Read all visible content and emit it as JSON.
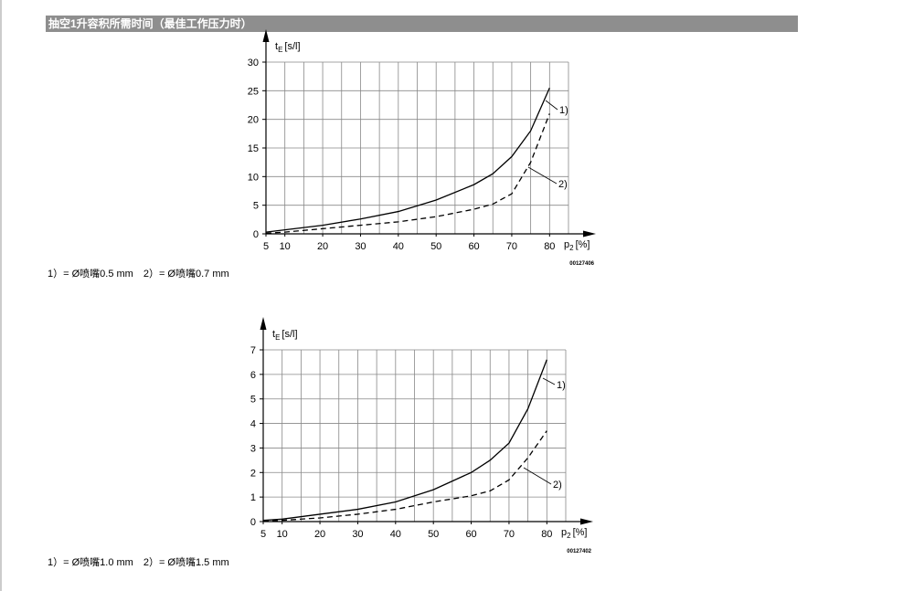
{
  "header": {
    "title": "抽空1升容积所需时间（最佳工作压力时）"
  },
  "chart_data": [
    {
      "type": "line",
      "ylabel": {
        "base": "t",
        "sub": "E",
        "unit": "[s/l]"
      },
      "xlabel": {
        "base": "p",
        "sub": "2",
        "unit": "[%]"
      },
      "figure_code": "00127406",
      "x": [
        5,
        10,
        20,
        30,
        40,
        50,
        60,
        65,
        70,
        75,
        80
      ],
      "series": [
        {
          "name": "1)",
          "color": "#000000",
          "style": "solid",
          "values": [
            0.3,
            0.7,
            1.5,
            2.6,
            3.9,
            5.9,
            8.6,
            10.5,
            13.5,
            18,
            25.5
          ]
        },
        {
          "name": "2)",
          "color": "#000000",
          "style": "dashed",
          "values": [
            0.1,
            0.3,
            0.9,
            1.5,
            2.1,
            3,
            4.3,
            5.2,
            7,
            12.5,
            21
          ]
        }
      ],
      "xlim": [
        5,
        85
      ],
      "xticks": [
        5,
        10,
        20,
        30,
        40,
        50,
        60,
        70,
        80
      ],
      "ylim": [
        0,
        30
      ],
      "yticks": [
        0,
        5,
        10,
        15,
        20,
        25,
        30
      ],
      "grid": true,
      "grid_step": 5,
      "caption": "1）= Ø喷嘴0.5 mm　2）= Ø喷嘴0.7 mm"
    },
    {
      "type": "line",
      "ylabel": {
        "base": "t",
        "sub": "E",
        "unit": "[s/l]"
      },
      "xlabel": {
        "base": "p",
        "sub": "2",
        "unit": "[%]"
      },
      "figure_code": "00127402",
      "x": [
        5,
        10,
        20,
        30,
        40,
        50,
        60,
        65,
        70,
        75,
        80
      ],
      "series": [
        {
          "name": "1)",
          "color": "#000000",
          "style": "solid",
          "values": [
            0.05,
            0.1,
            0.3,
            0.5,
            0.8,
            1.3,
            2.0,
            2.5,
            3.2,
            4.6,
            6.6
          ]
        },
        {
          "name": "2)",
          "color": "#000000",
          "style": "dashed",
          "values": [
            0.02,
            0.05,
            0.15,
            0.3,
            0.5,
            0.8,
            1.05,
            1.25,
            1.7,
            2.6,
            3.7
          ]
        }
      ],
      "xlim": [
        5,
        85
      ],
      "xticks": [
        5,
        10,
        20,
        30,
        40,
        50,
        60,
        70,
        80
      ],
      "ylim": [
        0,
        7
      ],
      "yticks": [
        0,
        1,
        2,
        3,
        4,
        5,
        6,
        7
      ],
      "grid": true,
      "grid_step": 5,
      "caption": "1）= Ø喷嘴1.0 mm　2）= Ø喷嘴1.5 mm"
    }
  ]
}
